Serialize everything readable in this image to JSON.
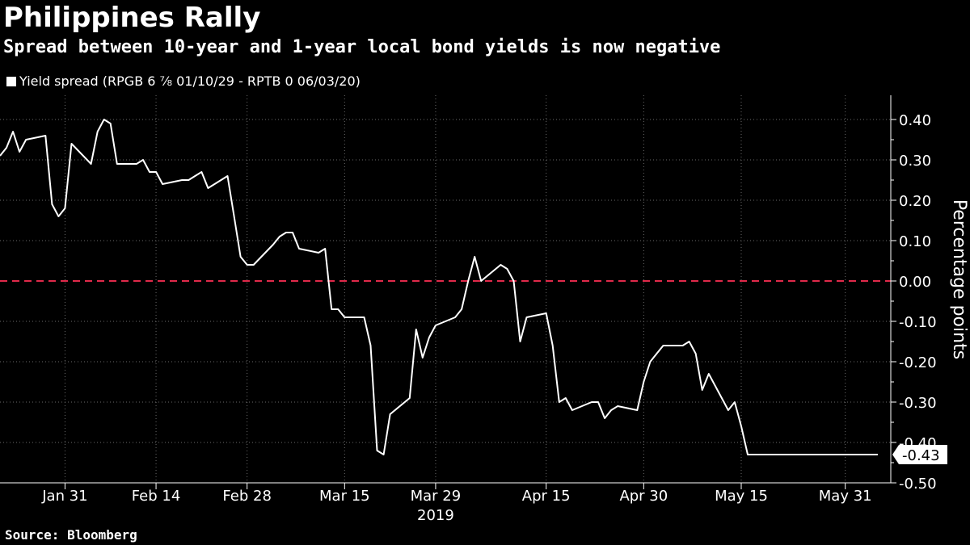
{
  "header": {
    "title": "Philippines Rally",
    "subtitle": "Spread between 10-year and 1-year local bond yields is now negative",
    "legend_label": "Yield spread (RPGB 6 ⅞ 01/10/29 - RPTB 0 06/03/20)"
  },
  "footer": {
    "source": "Source: Bloomberg"
  },
  "chart_data": {
    "type": "line",
    "title": "Philippines Rally",
    "subtitle": "Spread between 10-year and 1-year local bond yields is now negative",
    "xlabel": "2019",
    "ylabel": "Percentage points",
    "ylim": [
      -0.5,
      0.46
    ],
    "y_ticks": [
      0.4,
      0.3,
      0.2,
      0.1,
      0.0,
      -0.1,
      -0.2,
      -0.3,
      -0.4,
      -0.5
    ],
    "y_tick_labels": [
      "0.40",
      "0.30",
      "0.20",
      "0.10",
      "0.00",
      "-0.10",
      "-0.20",
      "-0.30",
      "-0.40",
      "-0.50"
    ],
    "x_range": [
      "2019-01-21",
      "2019-06-07"
    ],
    "x_ticks": [
      "2019-01-31",
      "2019-02-14",
      "2019-02-28",
      "2019-03-15",
      "2019-03-29",
      "2019-04-15",
      "2019-04-30",
      "2019-05-15",
      "2019-05-31"
    ],
    "x_tick_labels": [
      "Jan 31",
      "Feb 14",
      "Feb 28",
      "Mar 15",
      "Mar 29",
      "Apr 15",
      "Apr 30",
      "May 15",
      "May 31"
    ],
    "axis_position": "right",
    "grid": true,
    "legend_position": "top-left",
    "reference_line": {
      "y": 0.0,
      "color": "#e0294a",
      "style": "dashed"
    },
    "last_value_label": "-0.43",
    "series": [
      {
        "name": "Yield spread (RPGB 6 ⅞ 01/10/29 - RPTB 0 06/03/20)",
        "color": "#ffffff",
        "x": [
          "2019-01-21",
          "2019-01-22",
          "2019-01-23",
          "2019-01-24",
          "2019-01-25",
          "2019-01-28",
          "2019-01-29",
          "2019-01-30",
          "2019-01-31",
          "2019-02-01",
          "2019-02-04",
          "2019-02-05",
          "2019-02-06",
          "2019-02-07",
          "2019-02-08",
          "2019-02-11",
          "2019-02-12",
          "2019-02-13",
          "2019-02-14",
          "2019-02-15",
          "2019-02-18",
          "2019-02-19",
          "2019-02-20",
          "2019-02-21",
          "2019-02-22",
          "2019-02-25",
          "2019-02-26",
          "2019-02-27",
          "2019-02-28",
          "2019-03-01",
          "2019-03-04",
          "2019-03-05",
          "2019-03-06",
          "2019-03-07",
          "2019-03-08",
          "2019-03-11",
          "2019-03-12",
          "2019-03-13",
          "2019-03-14",
          "2019-03-15",
          "2019-03-18",
          "2019-03-19",
          "2019-03-20",
          "2019-03-21",
          "2019-03-22",
          "2019-03-25",
          "2019-03-26",
          "2019-03-27",
          "2019-03-28",
          "2019-03-29",
          "2019-04-01",
          "2019-04-02",
          "2019-04-03",
          "2019-04-04",
          "2019-04-05",
          "2019-04-08",
          "2019-04-09",
          "2019-04-10",
          "2019-04-11",
          "2019-04-12",
          "2019-04-15",
          "2019-04-16",
          "2019-04-17",
          "2019-04-18",
          "2019-04-19",
          "2019-04-22",
          "2019-04-23",
          "2019-04-24",
          "2019-04-25",
          "2019-04-26",
          "2019-04-29",
          "2019-04-30",
          "2019-05-01",
          "2019-05-02",
          "2019-05-03",
          "2019-05-06",
          "2019-05-07",
          "2019-05-08",
          "2019-05-09",
          "2019-05-10",
          "2019-05-13",
          "2019-05-14",
          "2019-05-15",
          "2019-05-16",
          "2019-05-17",
          "2019-05-20",
          "2019-05-21",
          "2019-05-22",
          "2019-05-23",
          "2019-05-24",
          "2019-05-27",
          "2019-05-28",
          "2019-05-29",
          "2019-05-30",
          "2019-05-31",
          "2019-06-03",
          "2019-06-04",
          "2019-06-05"
        ],
        "values": [
          0.31,
          0.33,
          0.37,
          0.32,
          0.35,
          0.36,
          0.19,
          0.16,
          0.18,
          0.34,
          0.29,
          0.37,
          0.4,
          0.39,
          0.29,
          0.29,
          0.3,
          0.27,
          0.27,
          0.24,
          0.25,
          0.25,
          0.26,
          0.27,
          0.23,
          0.26,
          0.16,
          0.06,
          0.04,
          0.04,
          0.09,
          0.11,
          0.12,
          0.12,
          0.08,
          0.07,
          0.08,
          -0.07,
          -0.07,
          -0.09,
          -0.09,
          -0.16,
          -0.42,
          -0.43,
          -0.33,
          -0.29,
          -0.12,
          -0.19,
          -0.14,
          -0.11,
          -0.09,
          -0.07,
          0.0,
          0.06,
          0.0,
          0.04,
          0.03,
          0.0,
          -0.15,
          -0.09,
          -0.08,
          -0.16,
          -0.3,
          -0.29,
          -0.32,
          -0.3,
          -0.3,
          -0.34,
          -0.32,
          -0.31,
          -0.32,
          -0.25,
          -0.2,
          -0.18,
          -0.16,
          -0.16,
          -0.15,
          -0.18,
          -0.27,
          -0.23,
          -0.32,
          -0.3,
          -0.36,
          -0.43,
          -0.43,
          -0.43,
          -0.43,
          -0.43,
          -0.43,
          -0.43,
          -0.43,
          -0.43,
          -0.43,
          -0.43,
          -0.43,
          -0.43,
          -0.43,
          -0.43
        ]
      }
    ]
  }
}
